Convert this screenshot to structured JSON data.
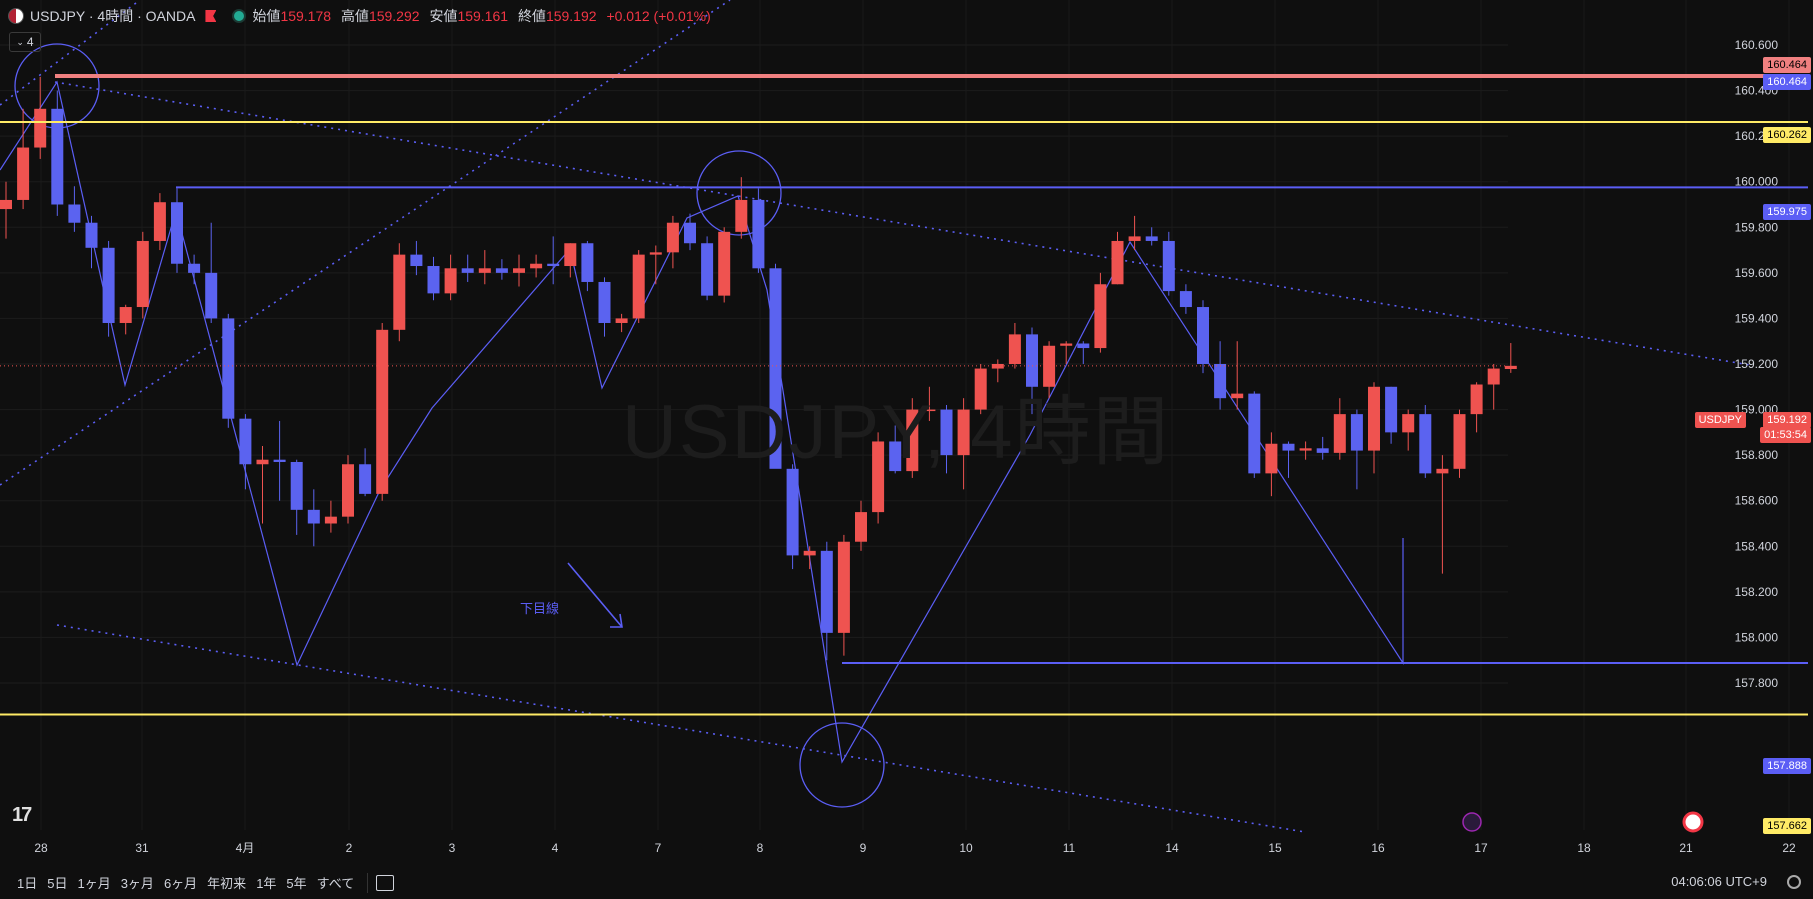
{
  "header": {
    "symbol": "USDJPY · 4時間 · OANDA",
    "open_label": "始値",
    "open": "159.178",
    "high_label": "高値",
    "high": "159.292",
    "low_label": "安値",
    "low": "159.161",
    "close_label": "終値",
    "close": "159.192",
    "change": "+0.012 (+0.01%)",
    "interval_badge": "4"
  },
  "watermark": "USDJPY, 4時間",
  "annotation_note": "下目線",
  "price_labels": {
    "top_red": "160.464",
    "top_red2": "160.464",
    "yellow_high": "160.262",
    "blue_high": "159.975",
    "current_symbol": "USDJPY",
    "current": "159.192",
    "countdown": "01:53:54",
    "blue_low": "157.888",
    "yellow_low": "157.662"
  },
  "bottom": {
    "ranges": [
      "1日",
      "5日",
      "1ヶ月",
      "3ヶ月",
      "6ヶ月",
      "年初来",
      "1年",
      "5年",
      "すべて"
    ],
    "clock": "04:06:06 UTC+9"
  },
  "colors": {
    "up": "#ef5350",
    "down": "#5b63f0",
    "bg": "#0f0f0f",
    "yellow": "#ffeb66",
    "pink": "#f08080",
    "blue": "#5b5ef5"
  },
  "chart_data": {
    "type": "candlestick",
    "y_ticks": [
      "160.600",
      "160.400",
      "160.200",
      "160.000",
      "159.800",
      "159.600",
      "159.400",
      "159.200",
      "159.000",
      "158.800",
      "158.600",
      "158.400",
      "158.200",
      "158.000",
      "157.800"
    ],
    "x_ticks": [
      "28",
      "31",
      "4月",
      "2",
      "3",
      "4",
      "7",
      "8",
      "9",
      "10",
      "11",
      "14",
      "15",
      "16",
      "17",
      "18",
      "21",
      "22"
    ],
    "horizontal_levels": [
      160.464,
      160.262,
      159.975,
      157.888,
      157.662
    ],
    "candles": [
      {
        "o": 159.88,
        "h": 160.0,
        "l": 159.75,
        "c": 159.92
      },
      {
        "o": 159.92,
        "h": 160.32,
        "l": 159.88,
        "c": 160.15
      },
      {
        "o": 160.15,
        "h": 160.46,
        "l": 160.1,
        "c": 160.32
      },
      {
        "o": 160.32,
        "h": 160.4,
        "l": 159.85,
        "c": 159.9
      },
      {
        "o": 159.9,
        "h": 159.98,
        "l": 159.78,
        "c": 159.82
      },
      {
        "o": 159.82,
        "h": 159.85,
        "l": 159.62,
        "c": 159.71
      },
      {
        "o": 159.71,
        "h": 159.74,
        "l": 159.32,
        "c": 159.38
      },
      {
        "o": 159.38,
        "h": 159.46,
        "l": 159.33,
        "c": 159.45
      },
      {
        "o": 159.45,
        "h": 159.78,
        "l": 159.4,
        "c": 159.74
      },
      {
        "o": 159.74,
        "h": 159.95,
        "l": 159.7,
        "c": 159.91
      },
      {
        "o": 159.91,
        "h": 159.97,
        "l": 159.6,
        "c": 159.64
      },
      {
        "o": 159.64,
        "h": 159.68,
        "l": 159.55,
        "c": 159.6
      },
      {
        "o": 159.6,
        "h": 159.82,
        "l": 159.38,
        "c": 159.4
      },
      {
        "o": 159.4,
        "h": 159.42,
        "l": 158.92,
        "c": 158.96
      },
      {
        "o": 158.96,
        "h": 158.98,
        "l": 158.65,
        "c": 158.76
      },
      {
        "o": 158.76,
        "h": 158.84,
        "l": 158.5,
        "c": 158.78
      },
      {
        "o": 158.78,
        "h": 158.95,
        "l": 158.6,
        "c": 158.77
      },
      {
        "o": 158.77,
        "h": 158.78,
        "l": 158.45,
        "c": 158.56
      },
      {
        "o": 158.56,
        "h": 158.65,
        "l": 158.4,
        "c": 158.5
      },
      {
        "o": 158.5,
        "h": 158.6,
        "l": 158.46,
        "c": 158.53
      },
      {
        "o": 158.53,
        "h": 158.8,
        "l": 158.5,
        "c": 158.76
      },
      {
        "o": 158.76,
        "h": 158.83,
        "l": 158.62,
        "c": 158.63
      },
      {
        "o": 158.63,
        "h": 159.38,
        "l": 158.6,
        "c": 159.35
      },
      {
        "o": 159.35,
        "h": 159.73,
        "l": 159.3,
        "c": 159.68
      },
      {
        "o": 159.68,
        "h": 159.74,
        "l": 159.59,
        "c": 159.63
      },
      {
        "o": 159.63,
        "h": 159.67,
        "l": 159.48,
        "c": 159.51
      },
      {
        "o": 159.51,
        "h": 159.68,
        "l": 159.48,
        "c": 159.62
      },
      {
        "o": 159.62,
        "h": 159.68,
        "l": 159.56,
        "c": 159.6
      },
      {
        "o": 159.6,
        "h": 159.7,
        "l": 159.55,
        "c": 159.62
      },
      {
        "o": 159.62,
        "h": 159.66,
        "l": 159.57,
        "c": 159.6
      },
      {
        "o": 159.6,
        "h": 159.68,
        "l": 159.54,
        "c": 159.62
      },
      {
        "o": 159.62,
        "h": 159.68,
        "l": 159.58,
        "c": 159.64
      },
      {
        "o": 159.64,
        "h": 159.76,
        "l": 159.55,
        "c": 159.63
      },
      {
        "o": 159.63,
        "h": 159.73,
        "l": 159.58,
        "c": 159.73
      },
      {
        "o": 159.73,
        "h": 159.74,
        "l": 159.52,
        "c": 159.56
      },
      {
        "o": 159.56,
        "h": 159.58,
        "l": 159.32,
        "c": 159.38
      },
      {
        "o": 159.38,
        "h": 159.42,
        "l": 159.34,
        "c": 159.4
      },
      {
        "o": 159.4,
        "h": 159.7,
        "l": 159.38,
        "c": 159.68
      },
      {
        "o": 159.68,
        "h": 159.72,
        "l": 159.55,
        "c": 159.69
      },
      {
        "o": 159.69,
        "h": 159.85,
        "l": 159.62,
        "c": 159.82
      },
      {
        "o": 159.82,
        "h": 159.86,
        "l": 159.7,
        "c": 159.73
      },
      {
        "o": 159.73,
        "h": 159.76,
        "l": 159.48,
        "c": 159.5
      },
      {
        "o": 159.5,
        "h": 159.8,
        "l": 159.47,
        "c": 159.78
      },
      {
        "o": 159.78,
        "h": 160.02,
        "l": 159.75,
        "c": 159.92
      },
      {
        "o": 159.92,
        "h": 159.97,
        "l": 159.6,
        "c": 159.62
      },
      {
        "o": 159.62,
        "h": 159.64,
        "l": 158.75,
        "c": 158.74
      },
      {
        "o": 158.74,
        "h": 158.76,
        "l": 158.3,
        "c": 158.36
      },
      {
        "o": 158.36,
        "h": 158.4,
        "l": 158.3,
        "c": 158.38
      },
      {
        "o": 158.38,
        "h": 158.42,
        "l": 157.9,
        "c": 158.02
      },
      {
        "o": 158.02,
        "h": 158.45,
        "l": 157.92,
        "c": 158.42
      },
      {
        "o": 158.42,
        "h": 158.6,
        "l": 158.38,
        "c": 158.55
      },
      {
        "o": 158.55,
        "h": 158.9,
        "l": 158.5,
        "c": 158.86
      },
      {
        "o": 158.86,
        "h": 158.93,
        "l": 158.72,
        "c": 158.73
      },
      {
        "o": 158.73,
        "h": 159.05,
        "l": 158.7,
        "c": 159.0
      },
      {
        "o": 159.0,
        "h": 159.1,
        "l": 158.95,
        "c": 159.0
      },
      {
        "o": 159.0,
        "h": 159.02,
        "l": 158.72,
        "c": 158.8
      },
      {
        "o": 158.8,
        "h": 159.05,
        "l": 158.65,
        "c": 159.0
      },
      {
        "o": 159.0,
        "h": 159.2,
        "l": 158.98,
        "c": 159.18
      },
      {
        "o": 159.18,
        "h": 159.22,
        "l": 159.12,
        "c": 159.2
      },
      {
        "o": 159.2,
        "h": 159.38,
        "l": 159.18,
        "c": 159.33
      },
      {
        "o": 159.33,
        "h": 159.36,
        "l": 158.98,
        "c": 159.1
      },
      {
        "o": 159.1,
        "h": 159.3,
        "l": 159.05,
        "c": 159.28
      },
      {
        "o": 159.28,
        "h": 159.3,
        "l": 159.2,
        "c": 159.29
      },
      {
        "o": 159.29,
        "h": 159.3,
        "l": 159.2,
        "c": 159.27
      },
      {
        "o": 159.27,
        "h": 159.6,
        "l": 159.25,
        "c": 159.55
      },
      {
        "o": 159.55,
        "h": 159.78,
        "l": 159.55,
        "c": 159.74
      },
      {
        "o": 159.74,
        "h": 159.85,
        "l": 159.7,
        "c": 159.76
      },
      {
        "o": 159.76,
        "h": 159.8,
        "l": 159.72,
        "c": 159.74
      },
      {
        "o": 159.74,
        "h": 159.78,
        "l": 159.5,
        "c": 159.52
      },
      {
        "o": 159.52,
        "h": 159.55,
        "l": 159.42,
        "c": 159.45
      },
      {
        "o": 159.45,
        "h": 159.48,
        "l": 159.16,
        "c": 159.2
      },
      {
        "o": 159.2,
        "h": 159.3,
        "l": 159.0,
        "c": 159.05
      },
      {
        "o": 159.05,
        "h": 159.3,
        "l": 159.0,
        "c": 159.07
      },
      {
        "o": 159.07,
        "h": 159.08,
        "l": 158.7,
        "c": 158.72
      },
      {
        "o": 158.72,
        "h": 158.9,
        "l": 158.62,
        "c": 158.85
      },
      {
        "o": 158.85,
        "h": 158.86,
        "l": 158.7,
        "c": 158.82
      },
      {
        "o": 158.82,
        "h": 158.86,
        "l": 158.78,
        "c": 158.83
      },
      {
        "o": 158.83,
        "h": 158.88,
        "l": 158.78,
        "c": 158.81
      },
      {
        "o": 158.81,
        "h": 159.05,
        "l": 158.78,
        "c": 158.98
      },
      {
        "o": 158.98,
        "h": 159.0,
        "l": 158.65,
        "c": 158.82
      },
      {
        "o": 158.82,
        "h": 159.12,
        "l": 158.72,
        "c": 159.1
      },
      {
        "o": 159.1,
        "h": 159.1,
        "l": 158.85,
        "c": 158.9
      },
      {
        "o": 158.9,
        "h": 159.0,
        "l": 158.82,
        "c": 158.98
      },
      {
        "o": 158.98,
        "h": 159.02,
        "l": 158.7,
        "c": 158.72
      },
      {
        "o": 158.72,
        "h": 158.8,
        "l": 158.28,
        "c": 158.74
      },
      {
        "o": 158.74,
        "h": 159.0,
        "l": 158.7,
        "c": 158.98
      },
      {
        "o": 158.98,
        "h": 159.12,
        "l": 158.9,
        "c": 159.11
      },
      {
        "o": 159.11,
        "h": 159.2,
        "l": 159.0,
        "c": 159.18
      },
      {
        "o": 159.178,
        "h": 159.292,
        "l": 159.161,
        "c": 159.192
      }
    ]
  }
}
